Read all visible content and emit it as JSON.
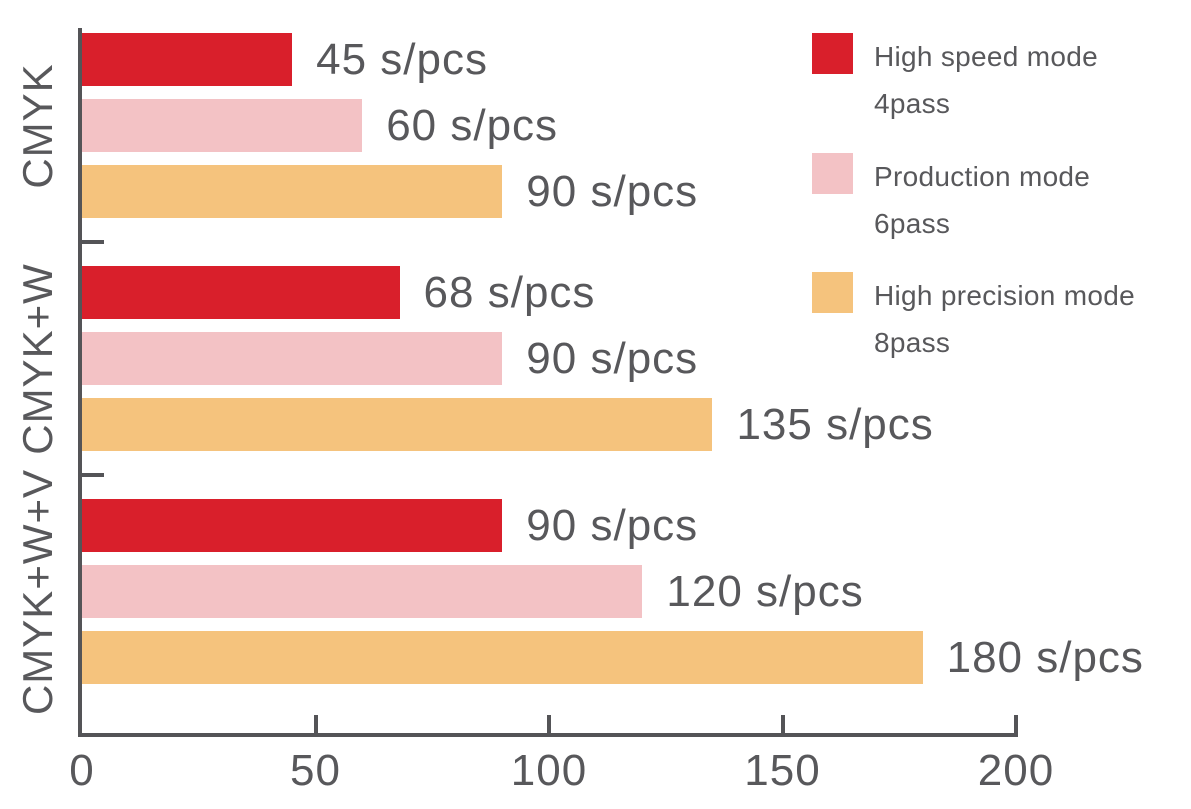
{
  "chart_data": {
    "type": "bar",
    "orientation": "horizontal",
    "title": "",
    "unit": "s/pcs",
    "categories": [
      "CMYK",
      "CMYK+W",
      "CMYK+W+V"
    ],
    "series": [
      {
        "name": "High speed mode",
        "subtitle": "4pass",
        "color": "#D91F2B",
        "values": [
          45,
          68,
          90
        ]
      },
      {
        "name": "Production mode",
        "subtitle": "6pass",
        "color": "#F3C2C5",
        "values": [
          60,
          90,
          120
        ]
      },
      {
        "name": "High precision mode",
        "subtitle": "8pass",
        "color": "#F5C37D",
        "values": [
          90,
          135,
          180
        ]
      }
    ],
    "bar_labels": [
      [
        "45 s/pcs",
        "60 s/pcs",
        "90 s/pcs"
      ],
      [
        "68 s/pcs",
        "90 s/pcs",
        "135 s/pcs"
      ],
      [
        "90 s/pcs",
        "120 s/pcs",
        "180 s/pcs"
      ]
    ],
    "xlim": [
      0,
      200
    ],
    "x_ticks": [
      0,
      50,
      100,
      150,
      200
    ],
    "legend_position": "top-right",
    "grid": false
  },
  "style": {
    "text_color": "#58585B",
    "axis_color": "#545457",
    "background": "#FFFFFF"
  }
}
